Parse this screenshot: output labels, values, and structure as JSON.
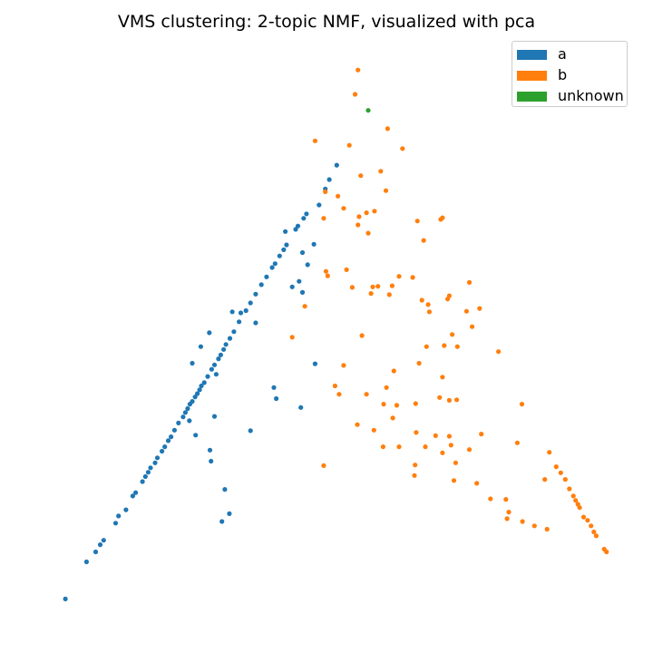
{
  "chart_data": {
    "type": "scatter",
    "title": "VMS clustering: 2-topic NMF, visualized with pca",
    "xlabel": "",
    "ylabel": "",
    "axes_visible": false,
    "grid": false,
    "legend_placement": "top-right",
    "xlim": [
      0,
      100
    ],
    "ylim": [
      0,
      100
    ],
    "series": [
      {
        "name": "a",
        "color": "#1f77b4",
        "points": [
          [
            4.3,
            2.4
          ],
          [
            8.0,
            9.1
          ],
          [
            9.6,
            10.9
          ],
          [
            10.4,
            12.2
          ],
          [
            11.0,
            13.0
          ],
          [
            13.1,
            16.1
          ],
          [
            13.6,
            17.4
          ],
          [
            14.9,
            18.5
          ],
          [
            16.1,
            21.0
          ],
          [
            16.6,
            21.6
          ],
          [
            17.8,
            23.6
          ],
          [
            18.3,
            24.5
          ],
          [
            18.8,
            25.3
          ],
          [
            19.2,
            26.1
          ],
          [
            20.0,
            27.0
          ],
          [
            20.4,
            27.9
          ],
          [
            21.2,
            29.1
          ],
          [
            21.7,
            29.9
          ],
          [
            22.3,
            31.0
          ],
          [
            22.8,
            31.7
          ],
          [
            23.4,
            32.9
          ],
          [
            24.1,
            34.2
          ],
          [
            24.9,
            35.3
          ],
          [
            25.3,
            36.1
          ],
          [
            25.7,
            36.8
          ],
          [
            26.1,
            37.6
          ],
          [
            26.5,
            38.1
          ],
          [
            27.0,
            38.9
          ],
          [
            27.4,
            39.5
          ],
          [
            27.8,
            40.2
          ],
          [
            28.1,
            40.9
          ],
          [
            28.6,
            41.5
          ],
          [
            29.2,
            42.6
          ],
          [
            29.9,
            43.9
          ],
          [
            30.4,
            44.7
          ],
          [
            31.1,
            45.8
          ],
          [
            31.5,
            46.5
          ],
          [
            32.0,
            47.5
          ],
          [
            33.1,
            49.5
          ],
          [
            33.8,
            50.7
          ],
          [
            34.7,
            52.5
          ],
          [
            35.9,
            54.5
          ],
          [
            36.7,
            55.9
          ],
          [
            37.6,
            57.5
          ],
          [
            38.6,
            59.2
          ],
          [
            39.5,
            60.6
          ],
          [
            40.5,
            62.3
          ],
          [
            41.0,
            63.0
          ],
          [
            41.8,
            64.4
          ],
          [
            42.5,
            65.5
          ],
          [
            43.0,
            66.4
          ],
          [
            44.6,
            69.2
          ],
          [
            45.0,
            69.8
          ],
          [
            46.0,
            71.2
          ],
          [
            46.5,
            72.0
          ],
          [
            48.7,
            73.6
          ],
          [
            49.8,
            76.5
          ],
          [
            50.5,
            78.2
          ],
          [
            51.8,
            80.8
          ],
          [
            26.5,
            45.0
          ],
          [
            28.0,
            48.0
          ],
          [
            29.5,
            50.5
          ],
          [
            30.7,
            43.0
          ],
          [
            32.4,
            48.4
          ],
          [
            33.5,
            54.3
          ],
          [
            35.0,
            54.1
          ],
          [
            37.6,
            52.3
          ],
          [
            30.4,
            35.4
          ],
          [
            31.7,
            16.4
          ],
          [
            32.2,
            22.2
          ],
          [
            33.0,
            17.8
          ],
          [
            29.8,
            27.3
          ],
          [
            29.6,
            29.3
          ],
          [
            27.1,
            32.0
          ],
          [
            26.0,
            34.6
          ],
          [
            36.7,
            32.8
          ],
          [
            40.8,
            40.6
          ],
          [
            41.2,
            38.6
          ],
          [
            45.5,
            37.0
          ],
          [
            44.0,
            58.8
          ],
          [
            42.8,
            68.8
          ],
          [
            45.8,
            65.0
          ],
          [
            45.2,
            59.8
          ],
          [
            47.8,
            66.5
          ],
          [
            48.0,
            44.9
          ],
          [
            45.8,
            57.8
          ],
          [
            46.7,
            62.8
          ]
        ]
      },
      {
        "name": "b",
        "color": "#ff7f0e",
        "points": [
          [
            55.5,
            98.0
          ],
          [
            55.0,
            93.6
          ],
          [
            60.7,
            87.4
          ],
          [
            63.3,
            83.8
          ],
          [
            48.0,
            85.2
          ],
          [
            54.0,
            84.4
          ],
          [
            59.5,
            79.7
          ],
          [
            60.4,
            76.2
          ],
          [
            56.0,
            78.9
          ],
          [
            49.8,
            76.0
          ],
          [
            52.0,
            75.2
          ],
          [
            53.0,
            73.0
          ],
          [
            49.5,
            71.2
          ],
          [
            55.7,
            71.5
          ],
          [
            57.0,
            72.2
          ],
          [
            58.4,
            72.5
          ],
          [
            55.5,
            70.0
          ],
          [
            57.3,
            68.5
          ],
          [
            65.9,
            70.7
          ],
          [
            70.0,
            71.0
          ],
          [
            70.3,
            71.3
          ],
          [
            67.0,
            67.2
          ],
          [
            49.9,
            61.6
          ],
          [
            50.2,
            60.8
          ],
          [
            53.5,
            61.9
          ],
          [
            54.5,
            58.7
          ],
          [
            58.1,
            58.8
          ],
          [
            57.8,
            57.6
          ],
          [
            59.0,
            58.9
          ],
          [
            61.5,
            59.0
          ],
          [
            61.0,
            57.4
          ],
          [
            62.7,
            60.7
          ],
          [
            65.1,
            60.5
          ],
          [
            66.7,
            56.4
          ],
          [
            67.8,
            55.6
          ],
          [
            71.5,
            57.2
          ],
          [
            75.0,
            59.6
          ],
          [
            76.8,
            54.9
          ],
          [
            46.2,
            55.3
          ],
          [
            44.0,
            49.7
          ],
          [
            56.2,
            50.0
          ],
          [
            67.5,
            48.0
          ],
          [
            70.6,
            48.2
          ],
          [
            72.9,
            48.0
          ],
          [
            75.5,
            51.6
          ],
          [
            80.1,
            47.1
          ],
          [
            53.0,
            44.6
          ],
          [
            51.5,
            40.9
          ],
          [
            52.2,
            39.4
          ],
          [
            57.0,
            39.4
          ],
          [
            62.3,
            37.4
          ],
          [
            65.6,
            37.7
          ],
          [
            69.8,
            38.8
          ],
          [
            71.5,
            38.3
          ],
          [
            72.8,
            38.4
          ],
          [
            84.2,
            37.6
          ],
          [
            61.6,
            35.1
          ],
          [
            55.4,
            33.9
          ],
          [
            65.7,
            32.5
          ],
          [
            69.1,
            31.9
          ],
          [
            71.5,
            31.8
          ],
          [
            77.1,
            32.2
          ],
          [
            83.4,
            30.6
          ],
          [
            59.9,
            29.9
          ],
          [
            62.7,
            29.9
          ],
          [
            67.3,
            29.9
          ],
          [
            71.8,
            30.2
          ],
          [
            75.0,
            29.4
          ],
          [
            70.3,
            28.8
          ],
          [
            72.6,
            27.0
          ],
          [
            89.0,
            28.9
          ],
          [
            65.5,
            26.6
          ],
          [
            49.5,
            26.5
          ],
          [
            65.4,
            24.7
          ],
          [
            72.3,
            23.8
          ],
          [
            76.3,
            23.3
          ],
          [
            88.2,
            24.0
          ],
          [
            90.2,
            26.3
          ],
          [
            91.0,
            25.2
          ],
          [
            91.8,
            24.0
          ],
          [
            92.5,
            22.3
          ],
          [
            93.2,
            21.0
          ],
          [
            93.6,
            20.2
          ],
          [
            94.0,
            19.5
          ],
          [
            94.3,
            18.9
          ],
          [
            95.0,
            17.2
          ],
          [
            95.7,
            16.6
          ],
          [
            96.3,
            15.6
          ],
          [
            96.8,
            14.5
          ],
          [
            97.2,
            13.8
          ],
          [
            98.6,
            11.4
          ],
          [
            99.0,
            10.9
          ],
          [
            78.7,
            20.5
          ],
          [
            81.4,
            20.4
          ],
          [
            81.9,
            18.1
          ],
          [
            84.3,
            16.4
          ],
          [
            86.4,
            15.6
          ],
          [
            88.6,
            15.0
          ],
          [
            81.6,
            16.9
          ],
          [
            68.0,
            54.3
          ],
          [
            74.5,
            54.4
          ],
          [
            70.3,
            42.5
          ],
          [
            72.0,
            50.2
          ],
          [
            71.2,
            56.6
          ],
          [
            66.2,
            45.0
          ],
          [
            61.8,
            43.6
          ],
          [
            60.5,
            40.6
          ],
          [
            60.0,
            37.6
          ],
          [
            58.3,
            32.9
          ]
        ]
      },
      {
        "name": "unknown",
        "color": "#2ca02c",
        "points": [
          [
            57.3,
            90.7
          ]
        ]
      }
    ]
  }
}
